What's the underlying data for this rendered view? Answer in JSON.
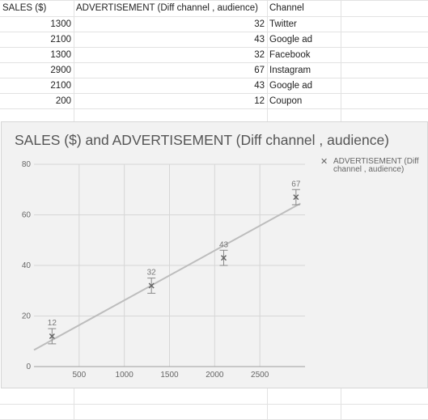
{
  "sheet": {
    "headers": [
      "SALES ($)",
      "ADVERTISEMENT (Diff channel , audience)",
      "Channel"
    ],
    "rows": [
      {
        "sales": "1300",
        "ad": "32",
        "channel": "Twitter"
      },
      {
        "sales": "2100",
        "ad": "43",
        "channel": "Google ad"
      },
      {
        "sales": "1300",
        "ad": "32",
        "channel": "Facebook"
      },
      {
        "sales": "2900",
        "ad": "67",
        "channel": "Instagram"
      },
      {
        "sales": "2100",
        "ad": "43",
        "channel": "Google ad"
      },
      {
        "sales": "200",
        "ad": "12",
        "channel": "Coupon"
      }
    ]
  },
  "chart_data": {
    "type": "scatter",
    "title": "SALES ($) and ADVERTISEMENT (Diff channel , audience)",
    "legend_position": "right",
    "grid": true,
    "xlim": [
      0,
      3000
    ],
    "ylim": [
      0,
      80
    ],
    "x_ticks": [
      "500",
      "1000",
      "1500",
      "2000",
      "2500"
    ],
    "y_ticks": [
      "0",
      "20",
      "40",
      "60",
      "80"
    ],
    "series": [
      {
        "name": "ADVERTISEMENT (Diff channel , audience)",
        "color": "#666666",
        "marker": "x",
        "points": [
          {
            "x": 200,
            "y": 12,
            "label": "12"
          },
          {
            "x": 1300,
            "y": 32,
            "label": "32"
          },
          {
            "x": 2100,
            "y": 43,
            "label": "43"
          },
          {
            "x": 2900,
            "y": 67,
            "label": "67"
          }
        ],
        "error_bars": true,
        "trendline": {
          "type": "linear",
          "color": "#bdbdbd"
        }
      }
    ]
  }
}
